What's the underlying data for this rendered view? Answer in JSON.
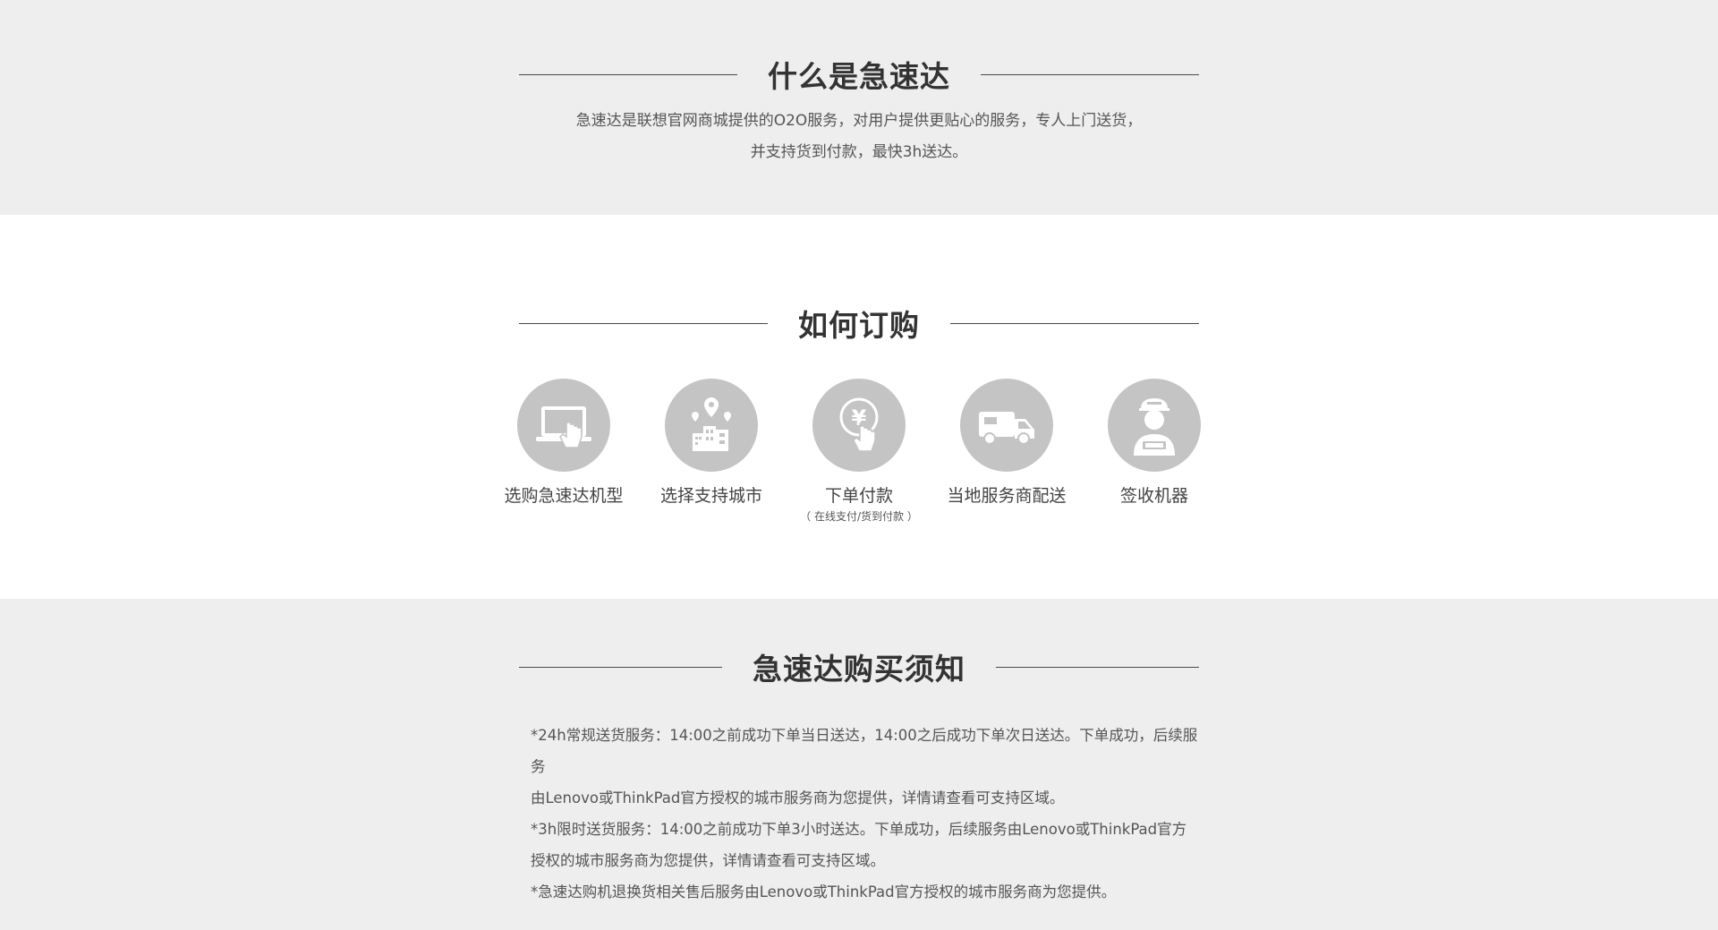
{
  "intro": {
    "title": "什么是急速达",
    "desc_line1": "急速达是联想官网商城提供的O2O服务，对用户提供更贴心的服务，专人上门送货，",
    "desc_line2": "并支持货到付款，最快3h送达。"
  },
  "how": {
    "title": "如何订购",
    "steps": [
      {
        "label": "选购急速达机型",
        "icon": "tablet-touch-icon"
      },
      {
        "label": "选择支持城市",
        "icon": "city-location-icon"
      },
      {
        "label": "下单付款",
        "sub": "（ 在线支付/货到付款 ）",
        "icon": "yuan-coin-touch-icon"
      },
      {
        "label": "当地服务商配送",
        "icon": "delivery-truck-icon"
      },
      {
        "label": "签收机器",
        "icon": "courier-person-icon"
      }
    ]
  },
  "notice": {
    "title": "急速达购买须知",
    "lines": [
      "*24h常规送货服务：14:00之前成功下单当日送达，14:00之后成功下单次日送达。下单成功，后续服务",
      "由Lenovo或ThinkPad官方授权的城市服务商为您提供，详情请查看可支持区域。",
      "*3h限时送货服务：14:00之前成功下单3小时送达。下单成功，后续服务由Lenovo或ThinkPad官方",
      "授权的城市服务商为您提供，详情请查看可支持区域。",
      "*急速达购机退换货相关售后服务由Lenovo或ThinkPad官方授权的城市服务商为您提供。"
    ]
  }
}
